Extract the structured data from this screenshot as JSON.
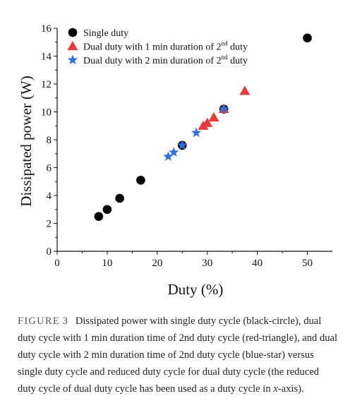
{
  "chart_data": {
    "type": "scatter",
    "xlabel": "Duty (%)",
    "ylabel": "Dissipated power (W)",
    "xlim": [
      0,
      55
    ],
    "ylim": [
      0,
      16
    ],
    "xticks": [
      0,
      10,
      20,
      30,
      40,
      50
    ],
    "yticks": [
      0,
      2,
      4,
      6,
      8,
      10,
      12,
      14,
      16
    ],
    "legend_position": "top-left",
    "series": [
      {
        "name": "Single duty",
        "marker": "circle",
        "color": "#000000",
        "points": [
          [
            8.3,
            2.5
          ],
          [
            10,
            3.0
          ],
          [
            12.5,
            3.8
          ],
          [
            16.7,
            5.1
          ],
          [
            25,
            7.6
          ],
          [
            33.3,
            10.2
          ],
          [
            50,
            15.3
          ]
        ]
      },
      {
        "name": "Dual duty with 1 min duration of 2",
        "name_sup": "nd",
        "name_suffix": " duty",
        "marker": "triangle",
        "color": "#e8393b",
        "points": [
          [
            29.2,
            9.0
          ],
          [
            30,
            9.2
          ],
          [
            31.3,
            9.6
          ],
          [
            33.3,
            10.2
          ],
          [
            37.5,
            11.5
          ]
        ]
      },
      {
        "name": "Dual duty with 2 min duration of 2",
        "name_sup": "nd",
        "name_suffix": " duty",
        "marker": "star",
        "color": "#2f6fe0",
        "points": [
          [
            22.2,
            6.8
          ],
          [
            23.3,
            7.1
          ],
          [
            25,
            7.6
          ],
          [
            27.8,
            8.5
          ],
          [
            33.3,
            10.2
          ]
        ]
      }
    ]
  },
  "caption": {
    "label": "FIGURE",
    "number": "3",
    "text_before_italic": "Dissipated power with single duty cycle (black-circle), dual duty cycle with 1 min duration time of 2nd duty cycle (red-triangle), and dual duty cycle with 2 min duration time of 2nd duty cycle (blue-star) versus single duty cycle and reduced duty cycle for dual duty cycle (the reduced duty cycle of dual duty cycle has been used as a duty cycle in ",
    "italic": "x",
    "text_after_italic": "-axis)."
  }
}
